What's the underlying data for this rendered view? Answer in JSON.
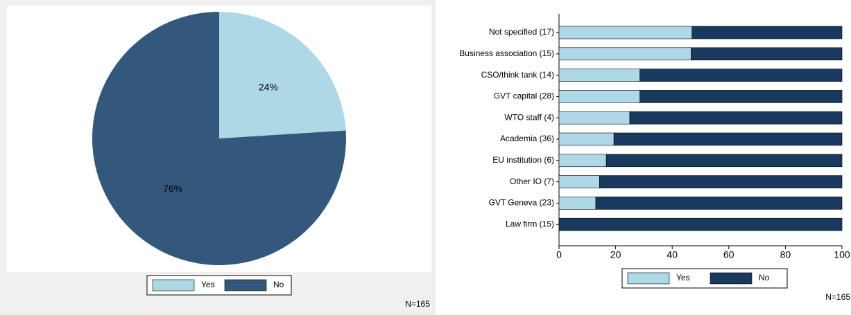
{
  "chart_data": [
    {
      "type": "pie",
      "categories": [
        "Yes",
        "No"
      ],
      "values": [
        24,
        76
      ],
      "value_labels": [
        "24%",
        "76%"
      ],
      "colors": [
        "#add8e6",
        "#34587b"
      ],
      "legend": "bottom",
      "note": "N=165"
    },
    {
      "type": "stacked-barh",
      "categories": [
        "Not specified (17)",
        "Business  association (15)",
        "CSO/think tank (14)",
        "GVT capital (28)",
        "WTO staff (4)",
        "Academia (36)",
        "EU institution (6)",
        "Other IO (7)",
        "GVT Geneva (23)",
        "Law firm (15)"
      ],
      "series": [
        {
          "name": "Yes",
          "color": "#add8e6",
          "values": [
            47,
            46.7,
            28.6,
            28.6,
            25,
            19.4,
            16.7,
            14.3,
            13,
            0
          ]
        },
        {
          "name": "No",
          "color": "#193a5e",
          "values": [
            53,
            53.3,
            71.4,
            71.4,
            75,
            80.6,
            83.3,
            85.7,
            87,
            100
          ]
        }
      ],
      "xlim": [
        0,
        100
      ],
      "xticks": [
        0,
        20,
        40,
        60,
        80,
        100
      ],
      "legend": "bottom",
      "note": "N=165"
    }
  ]
}
